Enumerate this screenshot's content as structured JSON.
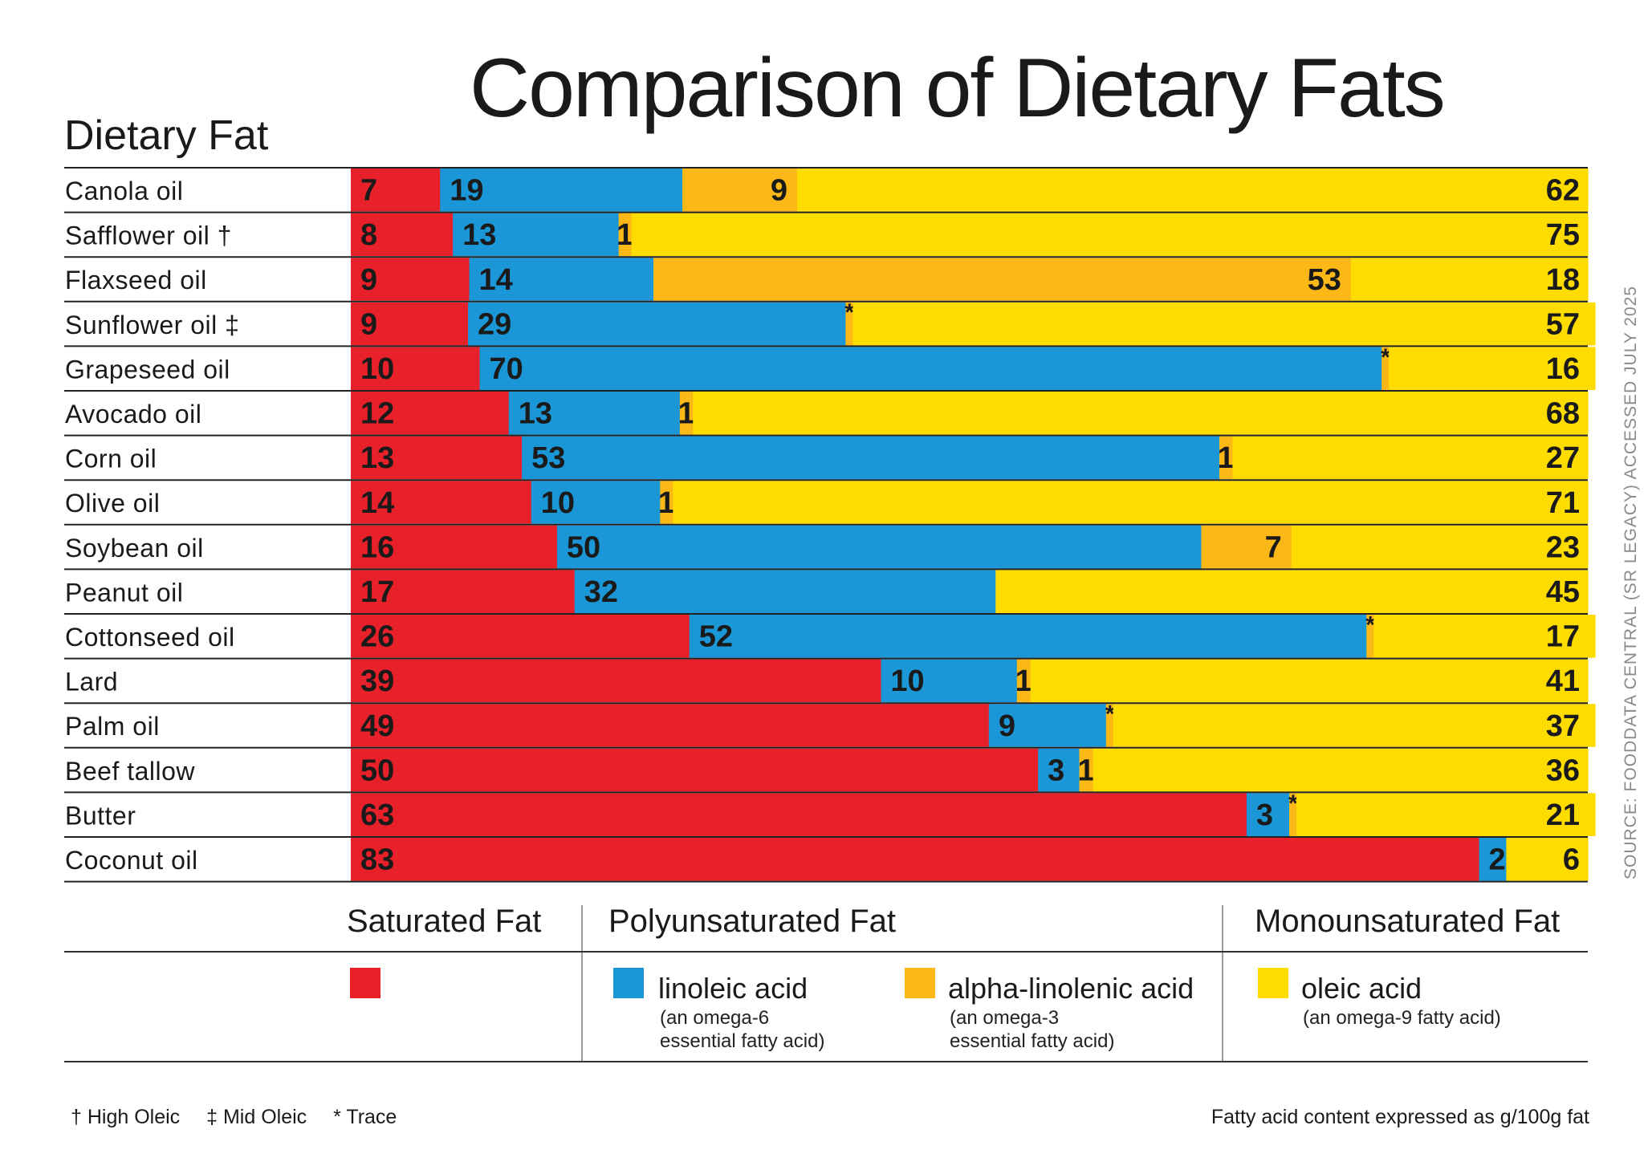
{
  "title": "Comparison of Dietary Fats",
  "row_header": "Dietary Fat",
  "source_note": "SOURCE: FOODDATA CENTRAL (SR LEGACY)     ACCESSED JULY 2025",
  "colors": {
    "saturated": "#e8202a",
    "linoleic": "#1b96d6",
    "alpha_linolenic": "#fbb816",
    "oleic": "#ffdc00"
  },
  "chart_data": {
    "type": "bar",
    "orientation": "horizontal",
    "stacked": true,
    "categories": [
      "Canola oil",
      "Safflower oil †",
      "Flaxseed oil",
      "Sunflower oil ‡",
      "Grapeseed oil",
      "Avocado oil",
      "Corn oil",
      "Olive oil",
      "Soybean oil",
      "Peanut oil",
      "Cottonseed oil",
      "Lard",
      "Palm oil",
      "Beef tallow",
      "Butter",
      "Coconut oil"
    ],
    "series": [
      {
        "name": "Saturated Fat",
        "color": "#e8202a",
        "values": [
          7,
          8,
          9,
          9,
          10,
          12,
          13,
          14,
          16,
          17,
          26,
          39,
          49,
          50,
          63,
          83
        ]
      },
      {
        "name": "linoleic acid",
        "color": "#1b96d6",
        "values": [
          19,
          13,
          14,
          29,
          70,
          13,
          53,
          10,
          50,
          32,
          52,
          10,
          9,
          3,
          3,
          2
        ]
      },
      {
        "name": "alpha-linolenic acid",
        "color": "#fbb816",
        "values": [
          9,
          1,
          53,
          0,
          0,
          1,
          1,
          1,
          7,
          0,
          0,
          1,
          0,
          1,
          0,
          0
        ],
        "labels": [
          "9",
          "1",
          "53",
          "*",
          "*",
          "1",
          "1",
          "1",
          "7",
          "",
          "*",
          "1",
          "*",
          "1",
          "*",
          ""
        ]
      },
      {
        "name": "oleic acid",
        "color": "#ffdc00",
        "values": [
          62,
          75,
          18,
          57,
          16,
          68,
          27,
          71,
          23,
          45,
          17,
          41,
          37,
          36,
          21,
          6
        ]
      }
    ]
  },
  "legend": {
    "saturated_header": "Saturated Fat",
    "poly_header": "Polyunsaturated Fat",
    "mono_header": "Monounsaturated Fat",
    "linoleic_name": "linoleic acid",
    "linoleic_desc1": "(an omega-6",
    "linoleic_desc2": "essential fatty acid)",
    "ala_name": "alpha-linolenic acid",
    "ala_desc1": "(an omega-3",
    "ala_desc2": "essential fatty acid)",
    "oleic_name": "oleic acid",
    "oleic_desc1": "(an omega-9 fatty acid)"
  },
  "footnotes": {
    "high_oleic": "† High Oleic",
    "mid_oleic": "‡ Mid Oleic",
    "trace": "* Trace"
  },
  "units_note": "Fatty acid content expressed as g/100g fat"
}
